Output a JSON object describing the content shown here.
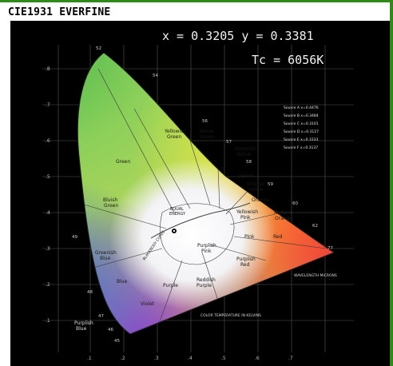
{
  "window": {
    "title": "CIE1931 EVERFINE"
  },
  "readout": {
    "xy": "x = 0.3205 y = 0.3381",
    "cct": "Tc = 6056K"
  },
  "diagram": {
    "regions": [
      {
        "label": "Green"
      },
      {
        "label": "Yellowish Green"
      },
      {
        "label": "Yellow Green"
      },
      {
        "label": "Greenish Yellow"
      },
      {
        "label": "Yellow"
      },
      {
        "label": "Orange Yellow"
      },
      {
        "label": "Orange"
      },
      {
        "label": "Reddish Orange"
      },
      {
        "label": "Red"
      },
      {
        "label": "Pink"
      },
      {
        "label": "Yellowish Pink"
      },
      {
        "label": "Purplish Pink"
      },
      {
        "label": "Purplish Red"
      },
      {
        "label": "Reddish Purple"
      },
      {
        "label": "Purple"
      },
      {
        "label": "Violet"
      },
      {
        "label": "Blue"
      },
      {
        "label": "Bluish Green"
      },
      {
        "label": "Greenish Blue"
      },
      {
        "label": "Purplish Blue"
      },
      {
        "label": "EQUAL ENERGY"
      },
      {
        "label": "BLACKBODY CURVE"
      }
    ],
    "wavelength_labels": [
      "52",
      "54",
      "56",
      "57",
      "58",
      "59",
      "60",
      "62",
      "77",
      "49",
      "48",
      "47",
      "46",
      "45"
    ],
    "sources_box": [
      "Source A  x=0.4476",
      "Source B  x=0.3484",
      "Source C  x=0.3101",
      "Source D  x=0.3127",
      "Source E  x=0.3333",
      "Source F  x=0.3137"
    ],
    "annotations": {
      "wavelength_note": "WAVELENGTH MICRONS",
      "cct_note": "COLOR TEMPERATURE IN KELVINS"
    },
    "x_ticks": [
      ".1",
      ".2",
      ".3",
      ".4",
      ".5",
      ".6",
      ".7"
    ],
    "y_ticks": [
      ".1",
      ".2",
      ".3",
      ".4",
      ".5",
      ".6",
      ".7",
      ".8"
    ]
  }
}
